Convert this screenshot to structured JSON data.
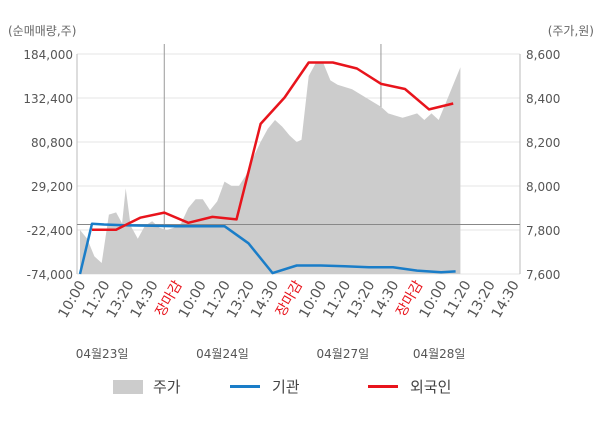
{
  "units": {
    "left": "(순매매량,주)",
    "right": "(주가,원)"
  },
  "legend": {
    "price": "주가",
    "inst": "기관",
    "foreign": "외국인"
  },
  "colors": {
    "price": "#cccccc",
    "inst": "#1a7dc8",
    "foreign": "#e8141c",
    "grid": "#e6e6e6",
    "special": "#e8141c"
  },
  "chart_data": {
    "type": "line",
    "title": "",
    "y_left": {
      "label": "(순매매량,주)",
      "min": -74000,
      "max": 184000,
      "ticks": [
        "184,000",
        "132,400",
        "80,800",
        "29,200",
        "-22,400",
        "-74,000"
      ]
    },
    "y_right": {
      "label": "(주가,원)",
      "min": 7600,
      "max": 8600,
      "ticks": [
        "8,600",
        "8,400",
        "8,200",
        "8,000",
        "7,800",
        "7,600"
      ]
    },
    "x_ticks": [
      {
        "label": "10:00",
        "special": false
      },
      {
        "label": "11:20",
        "special": false
      },
      {
        "label": "13:20",
        "special": false
      },
      {
        "label": "14:30",
        "special": false
      },
      {
        "label": "장마감",
        "special": true
      },
      {
        "label": "10:00",
        "special": false
      },
      {
        "label": "11:20",
        "special": false
      },
      {
        "label": "13:20",
        "special": false
      },
      {
        "label": "14:30",
        "special": false
      },
      {
        "label": "장마감",
        "special": true
      },
      {
        "label": "10:00",
        "special": false
      },
      {
        "label": "11:20",
        "special": false
      },
      {
        "label": "13:20",
        "special": false
      },
      {
        "label": "14:30",
        "special": false
      },
      {
        "label": "장마감",
        "special": true
      },
      {
        "label": "10:00",
        "special": false
      },
      {
        "label": "11:20",
        "special": false
      },
      {
        "label": "13:20",
        "special": false
      },
      {
        "label": "14:30",
        "special": false
      }
    ],
    "dates": [
      {
        "label": "04월23일",
        "tick_index": 1
      },
      {
        "label": "04월24일",
        "tick_index": 6
      },
      {
        "label": "04월27일",
        "tick_index": 11
      },
      {
        "label": "04월28일",
        "tick_index": 15
      }
    ],
    "separators_at_tick": [
      4,
      13
    ],
    "series": [
      {
        "name": "주가",
        "axis": "right",
        "kind": "area",
        "points": [
          [
            0,
            7800
          ],
          [
            0.3,
            7760
          ],
          [
            0.6,
            7680
          ],
          [
            0.9,
            7650
          ],
          [
            1.2,
            7870
          ],
          [
            1.5,
            7880
          ],
          [
            1.75,
            7830
          ],
          [
            1.9,
            7990
          ],
          [
            2.1,
            7820
          ],
          [
            2.4,
            7760
          ],
          [
            2.7,
            7820
          ],
          [
            3,
            7840
          ],
          [
            3.3,
            7810
          ],
          [
            3.6,
            7800
          ],
          [
            3.9,
            7810
          ],
          [
            4.2,
            7830
          ],
          [
            4.5,
            7900
          ],
          [
            4.8,
            7940
          ],
          [
            5.1,
            7940
          ],
          [
            5.4,
            7890
          ],
          [
            5.7,
            7930
          ],
          [
            6,
            8020
          ],
          [
            6.3,
            8000
          ],
          [
            6.6,
            8000
          ],
          [
            6.9,
            8050
          ],
          [
            7.2,
            8130
          ],
          [
            7.5,
            8200
          ],
          [
            7.8,
            8260
          ],
          [
            8.1,
            8300
          ],
          [
            8.4,
            8270
          ],
          [
            8.7,
            8230
          ],
          [
            9,
            8200
          ],
          [
            9.2,
            8210
          ],
          [
            9.5,
            8500
          ],
          [
            9.8,
            8560
          ],
          [
            10.1,
            8560
          ],
          [
            10.4,
            8480
          ],
          [
            10.7,
            8460
          ],
          [
            11,
            8450
          ],
          [
            11.3,
            8440
          ],
          [
            11.6,
            8420
          ],
          [
            11.9,
            8400
          ],
          [
            12.2,
            8380
          ],
          [
            12.5,
            8360
          ],
          [
            12.8,
            8330
          ],
          [
            13.1,
            8320
          ],
          [
            13.4,
            8310
          ],
          [
            13.7,
            8320
          ],
          [
            14,
            8330
          ],
          [
            14.3,
            8300
          ],
          [
            14.6,
            8330
          ],
          [
            14.9,
            8300
          ],
          [
            15.2,
            8380
          ],
          [
            15.5,
            8460
          ],
          [
            15.8,
            8540
          ]
        ]
      },
      {
        "name": "기관",
        "axis": "left",
        "kind": "line",
        "points": [
          [
            0,
            -74000
          ],
          [
            0.5,
            -15000
          ],
          [
            1,
            -16000
          ],
          [
            2,
            -17000
          ],
          [
            3,
            -17500
          ],
          [
            4,
            -18000
          ],
          [
            5,
            -18000
          ],
          [
            6,
            -18000
          ],
          [
            7,
            -38000
          ],
          [
            8,
            -73000
          ],
          [
            9,
            -64000
          ],
          [
            10,
            -64000
          ],
          [
            11,
            -65000
          ],
          [
            12,
            -66000
          ],
          [
            13,
            -66000
          ],
          [
            14,
            -70000
          ],
          [
            15,
            -72000
          ],
          [
            15.6,
            -71000
          ]
        ]
      },
      {
        "name": "외국인",
        "axis": "left",
        "kind": "line",
        "points": [
          [
            0.5,
            -22000
          ],
          [
            1.5,
            -22000
          ],
          [
            2.5,
            -8000
          ],
          [
            3.5,
            -2000
          ],
          [
            4.5,
            -14000
          ],
          [
            5.5,
            -7000
          ],
          [
            6.5,
            -10000
          ],
          [
            7.5,
            102000
          ],
          [
            8.5,
            133000
          ],
          [
            9.5,
            174000
          ],
          [
            10.5,
            174000
          ],
          [
            11.5,
            167000
          ],
          [
            12.5,
            149000
          ],
          [
            13.5,
            143000
          ],
          [
            14.5,
            119000
          ],
          [
            15.5,
            126000
          ]
        ]
      }
    ]
  }
}
